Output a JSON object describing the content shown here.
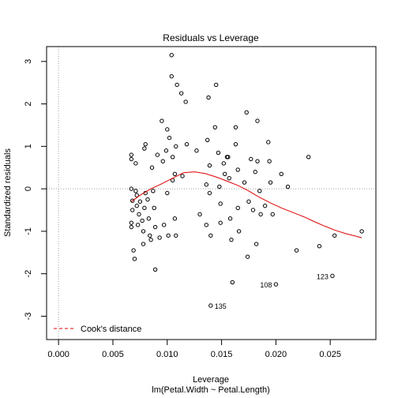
{
  "chart_data": {
    "type": "scatter",
    "title": "Residuals vs Leverage",
    "xlabel": "Leverage",
    "subtitle": "lm(Petal.Width ~ Petal.Length)",
    "ylabel": "Standardized residuals",
    "xlim": [
      -0.0011,
      0.0292
    ],
    "ylim": [
      -3.55,
      3.35
    ],
    "x_ticks": [
      0.0,
      0.005,
      0.01,
      0.015,
      0.02,
      0.025
    ],
    "x_tick_labels": [
      "0.000",
      "0.005",
      "0.010",
      "0.015",
      "0.020",
      "0.025"
    ],
    "y_ticks": [
      -3,
      -2,
      -1,
      0,
      1,
      2,
      3
    ],
    "y_tick_labels": [
      "-3",
      "-2",
      "-1",
      "0",
      "1",
      "2",
      "3"
    ],
    "reference_lines": {
      "x": 0,
      "y": 0,
      "style": "dotted",
      "color": "#a0a0a0"
    },
    "points": [
      [
        0.0067,
        0.8
      ],
      [
        0.0067,
        0.7
      ],
      [
        0.0067,
        0.0
      ],
      [
        0.0068,
        -0.28
      ],
      [
        0.0068,
        -0.5
      ],
      [
        0.0067,
        -0.8
      ],
      [
        0.0067,
        -0.9
      ],
      [
        0.0069,
        -1.45
      ],
      [
        0.007,
        -1.65
      ],
      [
        0.0071,
        0.6
      ],
      [
        0.0071,
        -0.05
      ],
      [
        0.0072,
        -0.15
      ],
      [
        0.0072,
        -0.4
      ],
      [
        0.0073,
        -0.85
      ],
      [
        0.0074,
        -0.6
      ],
      [
        0.0075,
        -0.3
      ],
      [
        0.0077,
        -0.75
      ],
      [
        0.0078,
        -1.0
      ],
      [
        0.0079,
        0.95
      ],
      [
        0.008,
        1.05
      ],
      [
        0.008,
        -0.1
      ],
      [
        0.0079,
        -0.45
      ],
      [
        0.0078,
        -1.3
      ],
      [
        0.0082,
        -0.25
      ],
      [
        0.0083,
        -0.7
      ],
      [
        0.0084,
        -1.1
      ],
      [
        0.0085,
        -1.2
      ],
      [
        0.0086,
        0.5
      ],
      [
        0.0087,
        -0.05
      ],
      [
        0.0088,
        -0.45
      ],
      [
        0.0089,
        -0.9
      ],
      [
        0.0089,
        -1.9
      ],
      [
        0.0091,
        0.8
      ],
      [
        0.0093,
        -1.15
      ],
      [
        0.0095,
        1.6
      ],
      [
        0.0096,
        0.65
      ],
      [
        0.0097,
        -0.85
      ],
      [
        0.0099,
        0.9
      ],
      [
        0.01,
        1.4
      ],
      [
        0.01,
        -0.1
      ],
      [
        0.0101,
        -1.1
      ],
      [
        0.0102,
        1.2
      ],
      [
        0.0104,
        3.15
      ],
      [
        0.0104,
        2.65
      ],
      [
        0.0105,
        0.75
      ],
      [
        0.0105,
        0.2
      ],
      [
        0.0107,
        0.35
      ],
      [
        0.0107,
        -0.7
      ],
      [
        0.0109,
        2.45
      ],
      [
        0.0108,
        1.0
      ],
      [
        0.0108,
        -1.1
      ],
      [
        0.0113,
        2.25
      ],
      [
        0.0114,
        0.3
      ],
      [
        0.0117,
        2.05
      ],
      [
        0.0118,
        1.05
      ],
      [
        0.0127,
        0.9
      ],
      [
        0.013,
        -0.6
      ],
      [
        0.0136,
        0.1
      ],
      [
        0.0136,
        -0.85
      ],
      [
        0.0137,
        1.15
      ],
      [
        0.0138,
        2.15
      ],
      [
        0.0139,
        0.55
      ],
      [
        0.0139,
        -0.1
      ],
      [
        0.014,
        -1.1
      ],
      [
        0.014,
        -2.75
      ],
      [
        0.0144,
        1.45
      ],
      [
        0.0145,
        2.45
      ],
      [
        0.0147,
        0.85
      ],
      [
        0.0148,
        0.05
      ],
      [
        0.0149,
        -0.35
      ],
      [
        0.0149,
        -0.8
      ],
      [
        0.0152,
        0.6
      ],
      [
        0.0153,
        0.35
      ],
      [
        0.0155,
        0.75
      ],
      [
        0.0156,
        0.75
      ],
      [
        0.0157,
        0.25
      ],
      [
        0.0158,
        -0.7
      ],
      [
        0.0159,
        -1.2
      ],
      [
        0.016,
        -2.2
      ],
      [
        0.0163,
        1.45
      ],
      [
        0.0163,
        1.05
      ],
      [
        0.0165,
        0.45
      ],
      [
        0.0165,
        -0.45
      ],
      [
        0.0166,
        -1.0
      ],
      [
        0.0171,
        0.15
      ],
      [
        0.0173,
        1.8
      ],
      [
        0.0174,
        -1.6
      ],
      [
        0.0175,
        -0.3
      ],
      [
        0.0177,
        0.7
      ],
      [
        0.0179,
        -0.5
      ],
      [
        0.0181,
        0.4
      ],
      [
        0.0182,
        -1.3
      ],
      [
        0.0183,
        1.6
      ],
      [
        0.0183,
        0.65
      ],
      [
        0.0185,
        -0.05
      ],
      [
        0.0186,
        -0.6
      ],
      [
        0.019,
        -0.4
      ],
      [
        0.0193,
        1.1
      ],
      [
        0.0194,
        0.65
      ],
      [
        0.0195,
        0.15
      ],
      [
        0.0197,
        -0.6
      ],
      [
        0.02,
        -2.25
      ],
      [
        0.0205,
        0.35
      ],
      [
        0.0211,
        0.05
      ],
      [
        0.0219,
        -1.45
      ],
      [
        0.023,
        0.75
      ],
      [
        0.024,
        -1.35
      ],
      [
        0.0252,
        -2.05
      ],
      [
        0.0254,
        -1.1
      ],
      [
        0.0279,
        -1.0
      ]
    ],
    "point_labels": [
      {
        "text": "135",
        "x": 0.014,
        "y": -2.75
      },
      {
        "text": "108",
        "x": 0.02,
        "y": -2.25
      },
      {
        "text": "123",
        "x": 0.0252,
        "y": -2.05
      }
    ],
    "smooth_line": {
      "color": "#dd0000",
      "x": [
        0.0067,
        0.0075,
        0.0085,
        0.0095,
        0.0105,
        0.0115,
        0.0125,
        0.0135,
        0.0145,
        0.0155,
        0.0165,
        0.0175,
        0.0185,
        0.0195,
        0.0205,
        0.0215,
        0.0225,
        0.0235,
        0.0245,
        0.0255,
        0.0265,
        0.0279
      ],
      "y": [
        -0.3,
        -0.15,
        0.0,
        0.12,
        0.25,
        0.38,
        0.4,
        0.36,
        0.28,
        0.18,
        0.08,
        -0.05,
        -0.2,
        -0.33,
        -0.45,
        -0.55,
        -0.65,
        -0.77,
        -0.88,
        -0.98,
        -1.06,
        -1.15
      ]
    },
    "legend": {
      "position": "bottom-left",
      "entries": [
        {
          "label": "Cook's distance",
          "color": "#dd0000",
          "style": "dashed"
        }
      ]
    }
  }
}
